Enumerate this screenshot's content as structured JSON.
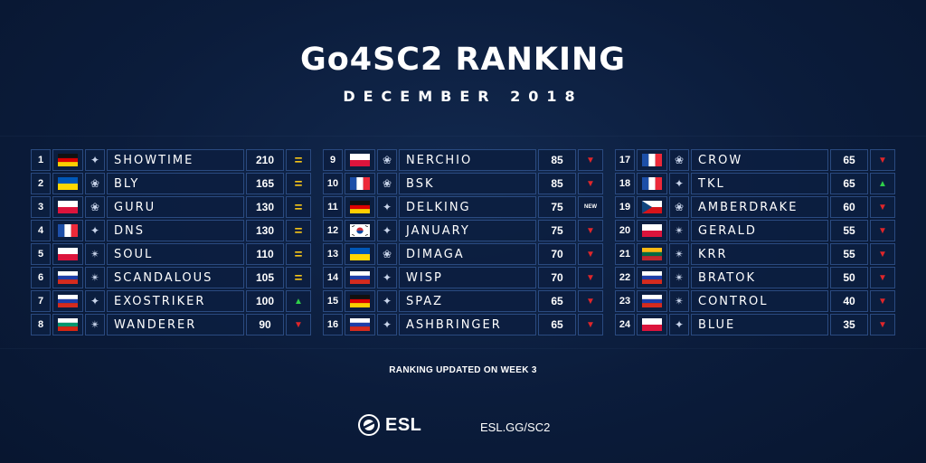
{
  "header": {
    "title": "Go4SC2 RANKING",
    "subtitle": "DECEMBER 2018"
  },
  "columns": [
    [
      {
        "rank": "1",
        "flag": "germany",
        "race": "protoss",
        "name": "SHOWTIME",
        "points": "210",
        "trend": "same"
      },
      {
        "rank": "2",
        "flag": "ukraine",
        "race": "zerg",
        "name": "BLY",
        "points": "165",
        "trend": "same"
      },
      {
        "rank": "3",
        "flag": "poland",
        "race": "zerg",
        "name": "GURU",
        "points": "130",
        "trend": "same"
      },
      {
        "rank": "4",
        "flag": "france",
        "race": "protoss",
        "name": "DNS",
        "points": "130",
        "trend": "same"
      },
      {
        "rank": "5",
        "flag": "poland",
        "race": "terran",
        "name": "SOUL",
        "points": "110",
        "trend": "same"
      },
      {
        "rank": "6",
        "flag": "russia",
        "race": "terran",
        "name": "SCANDALOUS",
        "points": "105",
        "trend": "same"
      },
      {
        "rank": "7",
        "flag": "russia",
        "race": "protoss",
        "name": "EXOSTRIKER",
        "points": "100",
        "trend": "up"
      },
      {
        "rank": "8",
        "flag": "bulgaria",
        "race": "terran",
        "name": "WANDERER",
        "points": "90",
        "trend": "down"
      }
    ],
    [
      {
        "rank": "9",
        "flag": "poland",
        "race": "zerg",
        "name": "NERCHIO",
        "points": "85",
        "trend": "down"
      },
      {
        "rank": "10",
        "flag": "france",
        "race": "zerg",
        "name": "BSK",
        "points": "85",
        "trend": "down"
      },
      {
        "rank": "11",
        "flag": "germany",
        "race": "protoss",
        "name": "DELKING",
        "points": "75",
        "trend": "new"
      },
      {
        "rank": "12",
        "flag": "korea",
        "race": "protoss",
        "name": "JANUARY",
        "points": "75",
        "trend": "down"
      },
      {
        "rank": "13",
        "flag": "ukraine",
        "race": "zerg",
        "name": "DIMAGA",
        "points": "70",
        "trend": "down"
      },
      {
        "rank": "14",
        "flag": "russia",
        "race": "protoss",
        "name": "WISP",
        "points": "70",
        "trend": "down"
      },
      {
        "rank": "15",
        "flag": "germany",
        "race": "protoss",
        "name": "SPAZ",
        "points": "65",
        "trend": "down"
      },
      {
        "rank": "16",
        "flag": "russia",
        "race": "protoss",
        "name": "ASHBRINGER",
        "points": "65",
        "trend": "down"
      }
    ],
    [
      {
        "rank": "17",
        "flag": "france",
        "race": "zerg",
        "name": "CROW",
        "points": "65",
        "trend": "down"
      },
      {
        "rank": "18",
        "flag": "france",
        "race": "protoss",
        "name": "TKL",
        "points": "65",
        "trend": "up"
      },
      {
        "rank": "19",
        "flag": "czech",
        "race": "zerg",
        "name": "AMBERDRAKE",
        "points": "60",
        "trend": "down"
      },
      {
        "rank": "20",
        "flag": "poland",
        "race": "terran",
        "name": "GERALD",
        "points": "55",
        "trend": "down"
      },
      {
        "rank": "21",
        "flag": "lithuania",
        "race": "terran",
        "name": "KRR",
        "points": "55",
        "trend": "down"
      },
      {
        "rank": "22",
        "flag": "russia",
        "race": "terran",
        "name": "BRATOK",
        "points": "50",
        "trend": "down"
      },
      {
        "rank": "23",
        "flag": "russia",
        "race": "terran",
        "name": "CONTROL",
        "points": "40",
        "trend": "down"
      },
      {
        "rank": "24",
        "flag": "poland",
        "race": "protoss",
        "name": "BLUE",
        "points": "35",
        "trend": "down"
      }
    ]
  ],
  "trend_labels": {
    "new": "NEW"
  },
  "footer": {
    "updated": "RANKING UPDATED ON WEEK 3",
    "logo_text": "ESL",
    "url": "ESL.GG/SC2"
  },
  "colors": {
    "background": "#0b1c3b",
    "cell_border": "#2a4a80",
    "same": "#f3c318",
    "down": "#e0262a",
    "up": "#2fcf4a"
  }
}
